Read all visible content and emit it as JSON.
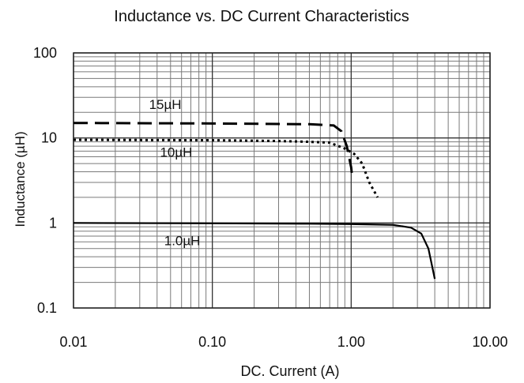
{
  "chart_data": {
    "type": "line",
    "title": "Inductance vs. DC Current Characteristics",
    "xlabel": "DC. Current (A)",
    "ylabel": "Inductance (µH)",
    "x_scale": "log",
    "y_scale": "log",
    "xlim": [
      0.01,
      10
    ],
    "ylim": [
      0.1,
      100
    ],
    "x_ticks": [
      0.01,
      0.1,
      1,
      10
    ],
    "x_tick_labels": [
      "0.01",
      "0.10",
      "1.00",
      "10.00"
    ],
    "y_ticks": [
      0.1,
      1,
      10,
      100
    ],
    "y_tick_labels": [
      "0.1",
      "1",
      "10",
      "100"
    ],
    "grid": true,
    "legend": "none",
    "series": [
      {
        "name": "15µH",
        "style": "dashed",
        "color": "#000000",
        "points": [
          [
            0.01,
            15
          ],
          [
            0.1,
            14.8
          ],
          [
            0.5,
            14.5
          ],
          [
            0.75,
            14
          ],
          [
            0.85,
            12
          ],
          [
            0.93,
            8
          ],
          [
            1.0,
            4.5
          ],
          [
            1.02,
            3.3
          ]
        ]
      },
      {
        "name": "10µH",
        "style": "dotted",
        "color": "#000000",
        "points": [
          [
            0.01,
            9.5
          ],
          [
            0.1,
            9.4
          ],
          [
            0.3,
            9.2
          ],
          [
            0.5,
            9.0
          ],
          [
            0.7,
            8.8
          ],
          [
            0.9,
            7.5
          ],
          [
            1.05,
            6.5
          ],
          [
            1.2,
            5
          ],
          [
            1.35,
            3
          ],
          [
            1.55,
            2.0
          ]
        ]
      },
      {
        "name": "1.0µH",
        "style": "solid",
        "color": "#000000",
        "points": [
          [
            0.01,
            1.0
          ],
          [
            0.1,
            0.99
          ],
          [
            0.5,
            0.98
          ],
          [
            1.0,
            0.97
          ],
          [
            2.0,
            0.95
          ],
          [
            2.7,
            0.88
          ],
          [
            3.2,
            0.75
          ],
          [
            3.6,
            0.5
          ],
          [
            4.0,
            0.22
          ]
        ]
      }
    ],
    "annotations": [
      {
        "text": "15µH",
        "x": 0.035,
        "y": 22
      },
      {
        "text": "10µH",
        "x": 0.042,
        "y": 6.0
      },
      {
        "text": "1.0µH",
        "x": 0.045,
        "y": 0.55
      }
    ]
  }
}
